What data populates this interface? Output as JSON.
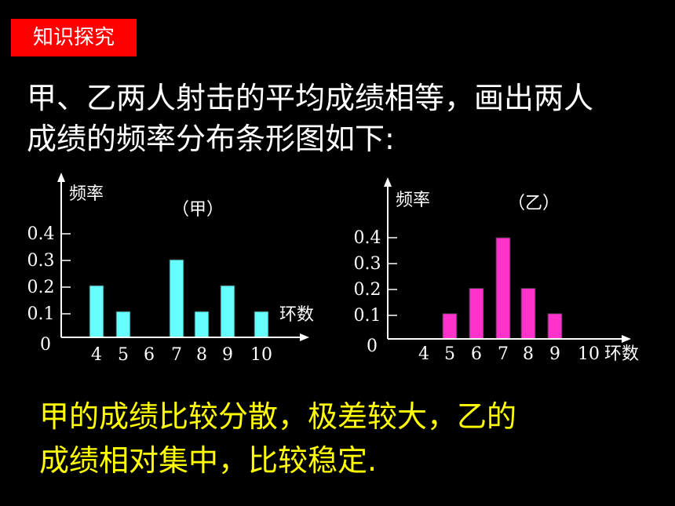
{
  "tag": "知识探究",
  "intro": {
    "line1": "甲、乙两人射击的平均成绩相等，画出两人",
    "line2": "成绩的频率分布条形图如下:"
  },
  "conclusion": {
    "line1": "甲的成绩比较分散，极差较大，乙的",
    "line2": "成绩相对集中，比较稳定."
  },
  "chart_data": [
    {
      "type": "bar",
      "title": "（甲）",
      "ylabel": "频率",
      "xlabel": "环数",
      "origin_label": "0",
      "categories": [
        "4",
        "5",
        "6",
        "7",
        "8",
        "9",
        "10"
      ],
      "values": [
        0.2,
        0.1,
        0,
        0.3,
        0.1,
        0.2,
        0.1
      ],
      "yticks": [
        "0.1",
        "0.2",
        "0.3",
        "0.4"
      ],
      "ylim": [
        0,
        0.4
      ],
      "color": "#66ffff"
    },
    {
      "type": "bar",
      "title": "（乙）",
      "ylabel": "频率",
      "xlabel": "环数",
      "origin_label": "0",
      "categories": [
        "4",
        "5",
        "6",
        "7",
        "8",
        "9",
        "10"
      ],
      "values": [
        0,
        0.1,
        0.2,
        0.4,
        0.2,
        0.1,
        0
      ],
      "yticks": [
        "0.1",
        "0.2",
        "0.3",
        "0.4"
      ],
      "ylim": [
        0,
        0.4
      ],
      "color": "#ff33cc"
    }
  ]
}
